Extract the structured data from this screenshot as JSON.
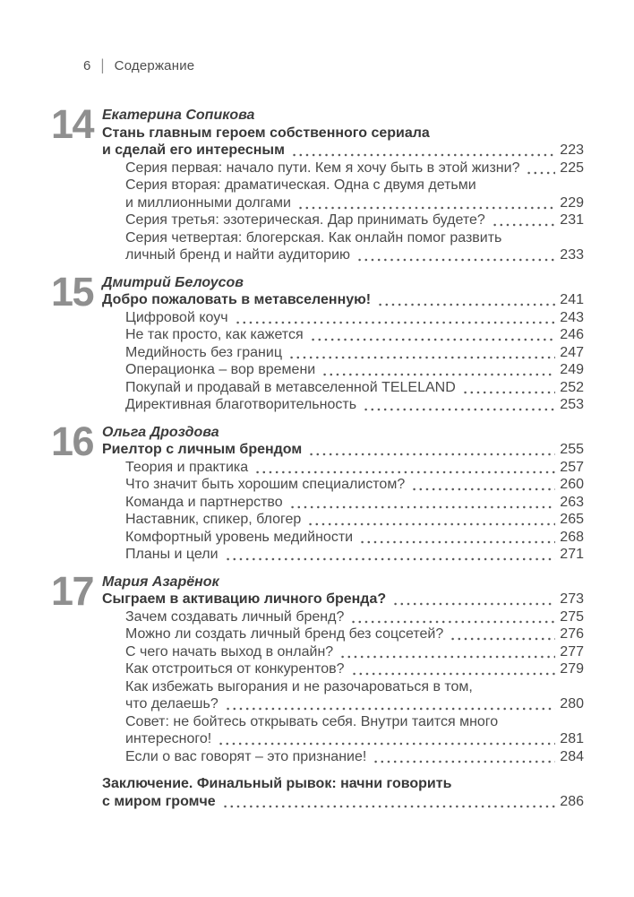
{
  "header": {
    "page_number": "6",
    "separator": "|",
    "title": "Содержание"
  },
  "chapters": [
    {
      "number": "14",
      "author": "Екатерина Сопикова",
      "title": {
        "lines": [
          "Стань главным героем собственного сериала",
          "и сделай его интересным"
        ],
        "page": "223"
      },
      "entries": [
        {
          "lines": [
            "Серия первая: начало пути. Кем я хочу быть в этой жизни?"
          ],
          "page": "225"
        },
        {
          "lines": [
            "Серия вторая: драматическая. Одна с двумя детьми",
            "и миллионными долгами"
          ],
          "page": "229"
        },
        {
          "lines": [
            "Серия третья: эзотерическая. Дар принимать будете?"
          ],
          "page": "231"
        },
        {
          "lines": [
            "Серия четвертая: блогерская. Как онлайн помог развить",
            "личный бренд и найти аудиторию"
          ],
          "page": "233"
        }
      ]
    },
    {
      "number": "15",
      "author": "Дмитрий Белоусов",
      "title": {
        "lines": [
          "Добро пожаловать в метавселенную!"
        ],
        "page": "241"
      },
      "entries": [
        {
          "lines": [
            "Цифровой коуч"
          ],
          "page": "243"
        },
        {
          "lines": [
            "Не так просто, как кажется"
          ],
          "page": "246"
        },
        {
          "lines": [
            "Медийность без границ"
          ],
          "page": "247"
        },
        {
          "lines": [
            "Операционка – вор времени"
          ],
          "page": "249"
        },
        {
          "lines": [
            "Покупай и продавай в метавселенной TELELAND"
          ],
          "page": "252"
        },
        {
          "lines": [
            "Директивная благотворительность"
          ],
          "page": "253"
        }
      ]
    },
    {
      "number": "16",
      "author": "Ольга Дроздова",
      "title": {
        "lines": [
          "Риелтор с личным брендом"
        ],
        "page": "255"
      },
      "entries": [
        {
          "lines": [
            "Теория и практика"
          ],
          "page": "257"
        },
        {
          "lines": [
            "Что значит быть хорошим специалистом?"
          ],
          "page": "260"
        },
        {
          "lines": [
            "Команда и партнерство"
          ],
          "page": "263"
        },
        {
          "lines": [
            "Наставник, спикер, блогер"
          ],
          "page": "265"
        },
        {
          "lines": [
            "Комфортный уровень медийности"
          ],
          "page": "268"
        },
        {
          "lines": [
            "Планы и цели"
          ],
          "page": "271"
        }
      ]
    },
    {
      "number": "17",
      "author": "Мария Азарёнок",
      "title": {
        "lines": [
          "Сыграем в активацию личного бренда?"
        ],
        "page": "273"
      },
      "entries": [
        {
          "lines": [
            "Зачем создавать личный бренд?"
          ],
          "page": "275"
        },
        {
          "lines": [
            "Можно ли создать личный бренд без соцсетей?"
          ],
          "page": "276"
        },
        {
          "lines": [
            "С чего начать выход в онлайн?"
          ],
          "page": "277"
        },
        {
          "lines": [
            "Как отстроиться от конкурентов?"
          ],
          "page": "279"
        },
        {
          "lines": [
            "Как избежать выгорания и не разочароваться в том,",
            "что делаешь?"
          ],
          "page": "280"
        },
        {
          "lines": [
            "Совет: не бойтесь открывать себя. Внутри таится много",
            "интересного!"
          ],
          "page": "281"
        },
        {
          "lines": [
            "Если о вас говорят – это признание!"
          ],
          "page": "284"
        }
      ]
    }
  ],
  "conclusion": {
    "lines": [
      "Заключение. Финальный рывок: начни говорить",
      "с миром громче"
    ],
    "page": "286"
  }
}
